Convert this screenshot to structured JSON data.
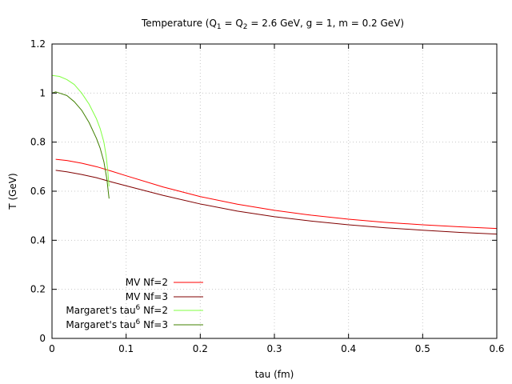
{
  "chart_data": {
    "type": "line",
    "title_parts": {
      "t1": "Temperature (Q",
      "s1": "1",
      "t2": " = Q",
      "s2": "2",
      "t3": " = 2.6 GeV, g = 1, m = 0.2 GeV)"
    },
    "xlabel": "tau (fm)",
    "ylabel": "T (GeV)",
    "xlim": [
      0,
      0.6
    ],
    "ylim": [
      0,
      1.2
    ],
    "xticks": [
      0,
      0.1,
      0.2,
      0.3,
      0.4,
      0.5,
      0.6
    ],
    "xtick_labels": [
      "0",
      "0.1",
      "0.2",
      "0.3",
      "0.4",
      "0.5",
      "0.6"
    ],
    "yticks": [
      0,
      0.2,
      0.4,
      0.6,
      0.8,
      1.0,
      1.2
    ],
    "ytick_labels": [
      "0",
      "0.2",
      "0.4",
      "0.6",
      "0.8",
      "1",
      "1.2"
    ],
    "grid": true,
    "legend_position": "bottom-left",
    "series": [
      {
        "name": "MV Nf=2",
        "color": "#ff0000",
        "x": [
          0.005,
          0.02,
          0.04,
          0.06,
          0.08,
          0.1,
          0.15,
          0.2,
          0.25,
          0.3,
          0.35,
          0.4,
          0.45,
          0.5,
          0.55,
          0.6
        ],
        "y": [
          0.73,
          0.725,
          0.714,
          0.7,
          0.682,
          0.663,
          0.617,
          0.578,
          0.547,
          0.522,
          0.502,
          0.486,
          0.473,
          0.463,
          0.455,
          0.448
        ]
      },
      {
        "name": "MV Nf=3",
        "color": "#800000",
        "x": [
          0.005,
          0.02,
          0.04,
          0.06,
          0.08,
          0.1,
          0.15,
          0.2,
          0.25,
          0.3,
          0.35,
          0.4,
          0.45,
          0.5,
          0.55,
          0.6
        ],
        "y": [
          0.685,
          0.679,
          0.668,
          0.655,
          0.638,
          0.622,
          0.583,
          0.548,
          0.519,
          0.496,
          0.478,
          0.463,
          0.451,
          0.441,
          0.432,
          0.425
        ]
      },
      {
        "name_parts": {
          "t1": "Margaret's tau",
          "sup": "6",
          "t2": " Nf=2"
        },
        "color": "#80ff40",
        "x": [
          0.0,
          0.01,
          0.02,
          0.03,
          0.04,
          0.05,
          0.06,
          0.065,
          0.07,
          0.073,
          0.075,
          0.077
        ],
        "y": [
          1.072,
          1.068,
          1.055,
          1.035,
          1.0,
          0.955,
          0.895,
          0.855,
          0.8,
          0.745,
          0.69,
          0.62
        ]
      },
      {
        "name_parts": {
          "t1": "Margaret's tau",
          "sup": "6",
          "t2": " Nf=3"
        },
        "color": "#408000",
        "x": [
          0.0,
          0.005,
          0.01,
          0.02,
          0.03,
          0.04,
          0.05,
          0.06,
          0.065,
          0.07,
          0.074,
          0.077
        ],
        "y": [
          1.0,
          1.005,
          1.0,
          0.99,
          0.965,
          0.93,
          0.88,
          0.815,
          0.775,
          0.72,
          0.65,
          0.57
        ]
      }
    ]
  }
}
